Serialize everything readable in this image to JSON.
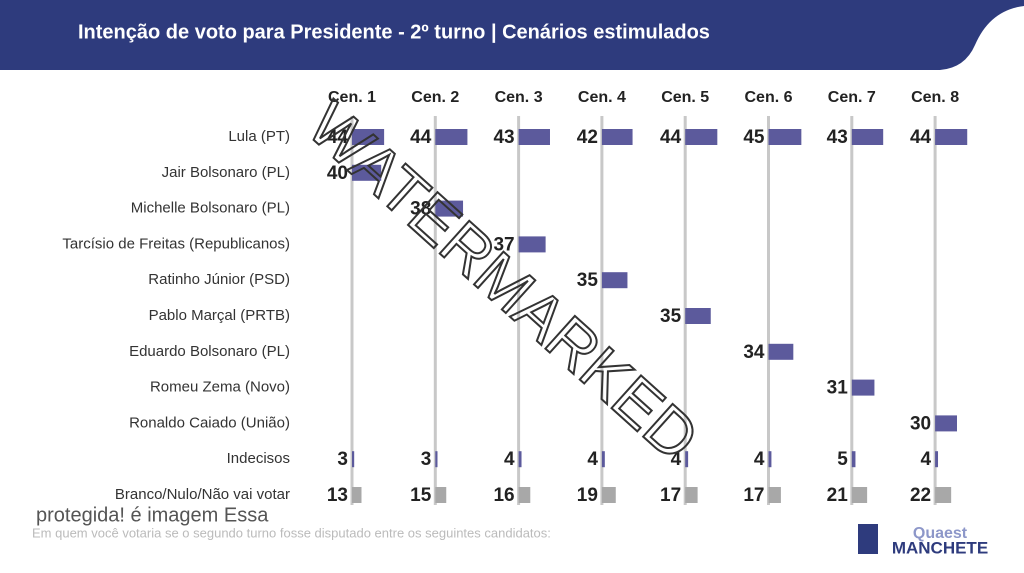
{
  "chart_data": {
    "type": "bar",
    "title": "Intenção de voto para Presidente - 2º turno | Cenários estimulados",
    "footnote": "Em quem você votaria se o segundo turno fosse disputado entre os seguintes candidatos:",
    "annotations": [
      "WATERMARKED",
      "protegida! é imagem Essa",
      "Quaest",
      "MANCHETE"
    ],
    "categories": [
      "Lula (PT)",
      "Jair Bolsonaro (PL)",
      "Michelle Bolsonaro (PL)",
      "Tarcísio de Freitas (Republicanos)",
      "Ratinho Júnior (PSD)",
      "Pablo Marçal (PRTB)",
      "Eduardo Bolsonaro (PL)",
      "Romeu Zema (Novo)",
      "Ronaldo Caiado (União)",
      "Indecisos",
      "Branco/Nulo/Não vai votar"
    ],
    "colors": [
      "#5c5a9c",
      "#5c5a9c",
      "#5c5a9c",
      "#5c5a9c",
      "#5c5a9c",
      "#5c5a9c",
      "#5c5a9c",
      "#5c5a9c",
      "#5c5a9c",
      "#5c5a9c",
      "#a8a8a8"
    ],
    "series": [
      {
        "name": "Cen. 1",
        "values": [
          44,
          40,
          null,
          null,
          null,
          null,
          null,
          null,
          null,
          3,
          13
        ]
      },
      {
        "name": "Cen. 2",
        "values": [
          44,
          null,
          38,
          null,
          null,
          null,
          null,
          null,
          null,
          3,
          15
        ]
      },
      {
        "name": "Cen. 3",
        "values": [
          43,
          null,
          null,
          37,
          null,
          null,
          null,
          null,
          null,
          4,
          16
        ]
      },
      {
        "name": "Cen. 4",
        "values": [
          42,
          null,
          null,
          null,
          35,
          null,
          null,
          null,
          null,
          4,
          19
        ]
      },
      {
        "name": "Cen. 5",
        "values": [
          44,
          null,
          null,
          null,
          null,
          35,
          null,
          null,
          null,
          4,
          17
        ]
      },
      {
        "name": "Cen. 6",
        "values": [
          45,
          null,
          null,
          null,
          null,
          null,
          34,
          null,
          null,
          4,
          17
        ]
      },
      {
        "name": "Cen. 7",
        "values": [
          43,
          null,
          null,
          null,
          null,
          null,
          null,
          31,
          null,
          5,
          21
        ]
      },
      {
        "name": "Cen. 8",
        "values": [
          44,
          null,
          null,
          null,
          null,
          null,
          null,
          null,
          30,
          4,
          22
        ]
      }
    ]
  }
}
